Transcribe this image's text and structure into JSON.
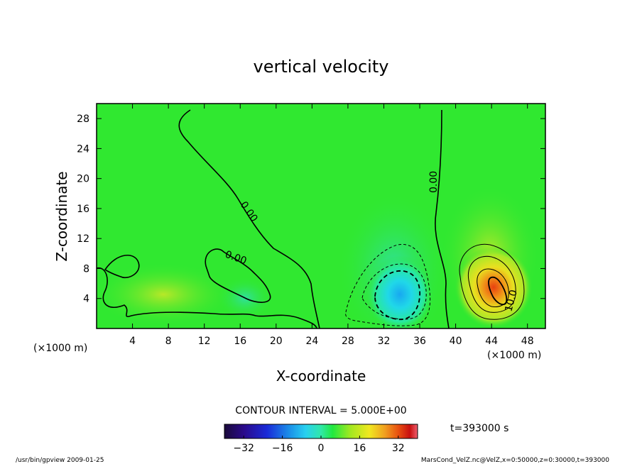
{
  "chart_data": {
    "type": "heatmap",
    "title": "vertical velocity",
    "xlabel": "X-coordinate",
    "ylabel": "Z-coordinate",
    "x_unit": "(×1000 m)",
    "y_unit": "(×1000 m)",
    "xlim": [
      0,
      50
    ],
    "ylim": [
      0,
      30
    ],
    "x_ticks": [
      4,
      8,
      12,
      16,
      20,
      24,
      28,
      32,
      36,
      40,
      44,
      48
    ],
    "y_ticks": [
      4,
      8,
      12,
      16,
      20,
      24,
      28
    ],
    "contour_interval": "CONTOUR INTERVAL = 5.000E+00",
    "contour_labels": [
      "0.00",
      "0.00",
      "0.00",
      "10.0"
    ],
    "colorbar": {
      "range": [
        -40,
        40
      ],
      "ticks": [
        -32,
        -16,
        0,
        16,
        32
      ],
      "colors": [
        "#1a0a3a",
        "#2a0a8a",
        "#1a2ad8",
        "#1a8ae8",
        "#28d0f0",
        "#30e8a8",
        "#20e840",
        "#a0e820",
        "#f0e820",
        "#f0a020",
        "#e85010",
        "#c81010",
        "#f06070"
      ]
    },
    "features": [
      {
        "kind": "updraft-max",
        "x": 44.5,
        "z": 5,
        "value": 15
      },
      {
        "kind": "downdraft-min",
        "x": 33.5,
        "z": 3.5,
        "value": -12
      },
      {
        "kind": "zero-line",
        "x_start": 9,
        "x_end": 24
      }
    ],
    "time": "t=393000 s"
  },
  "footer": {
    "left": "/usr/bin/gpview  2009-01-25",
    "right": "MarsCond_VelZ.nc@VelZ,x=0:50000,z=0:30000,t=393000"
  }
}
